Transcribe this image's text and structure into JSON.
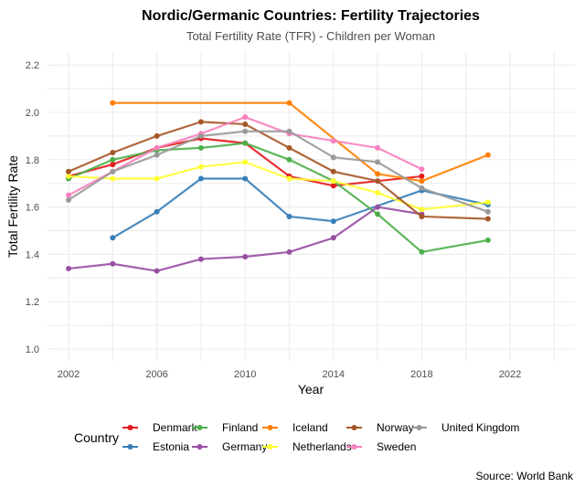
{
  "chart_data": {
    "type": "line",
    "title": "Nordic/Germanic Countries: Fertility Trajectories",
    "subtitle": "Total Fertility Rate (TFR) - Children per Woman",
    "xlabel": "Year",
    "ylabel": "Total Fertility Rate",
    "xlim": [
      2001,
      2025
    ],
    "ylim": [
      0.97,
      2.25
    ],
    "x_ticks": [
      "2002",
      "2006",
      "2010",
      "2014",
      "2018",
      "2022"
    ],
    "y_ticks": [
      "1.0",
      "1.2",
      "1.4",
      "1.6",
      "1.8",
      "2.0",
      "2.2"
    ],
    "grid": true,
    "legend_title": "Country",
    "legend_position": "bottom",
    "caption": "Source: World Bank",
    "series": [
      {
        "name": "Denmark",
        "color": "#e41a1c",
        "x": [
          2002,
          2004,
          2006,
          2008,
          2010,
          2012,
          2014,
          2018
        ],
        "y": [
          1.73,
          1.78,
          1.85,
          1.89,
          1.87,
          1.73,
          1.69,
          1.73
        ]
      },
      {
        "name": "Estonia",
        "color": "#377eb8",
        "x": [
          2004,
          2006,
          2008,
          2010,
          2012,
          2014,
          2018,
          2021
        ],
        "y": [
          1.47,
          1.58,
          1.72,
          1.72,
          1.56,
          1.54,
          1.67,
          1.61
        ]
      },
      {
        "name": "Finland",
        "color": "#4daf4a",
        "x": [
          2002,
          2004,
          2006,
          2008,
          2010,
          2012,
          2014,
          2016,
          2018,
          2021
        ],
        "y": [
          1.72,
          1.8,
          1.84,
          1.85,
          1.87,
          1.8,
          1.71,
          1.57,
          1.41,
          1.46
        ]
      },
      {
        "name": "Germany",
        "color": "#984ea3",
        "x": [
          2002,
          2004,
          2006,
          2008,
          2010,
          2012,
          2014,
          2016,
          2018
        ],
        "y": [
          1.34,
          1.36,
          1.33,
          1.38,
          1.39,
          1.41,
          1.47,
          1.6,
          1.57
        ]
      },
      {
        "name": "Iceland",
        "color": "#ff7f00",
        "x": [
          2004,
          2012,
          2016,
          2018,
          2021
        ],
        "y": [
          2.04,
          2.04,
          1.74,
          1.71,
          1.82
        ]
      },
      {
        "name": "Netherlands",
        "color": "#ffff33",
        "x": [
          2002,
          2004,
          2006,
          2008,
          2010,
          2012,
          2014,
          2016,
          2018,
          2021
        ],
        "y": [
          1.73,
          1.72,
          1.72,
          1.77,
          1.79,
          1.72,
          1.71,
          1.66,
          1.59,
          1.62
        ]
      },
      {
        "name": "Norway",
        "color": "#a65628",
        "x": [
          2002,
          2004,
          2006,
          2008,
          2010,
          2012,
          2014,
          2016,
          2018,
          2021
        ],
        "y": [
          1.75,
          1.83,
          1.9,
          1.96,
          1.95,
          1.85,
          1.75,
          1.71,
          1.56,
          1.55
        ]
      },
      {
        "name": "Sweden",
        "color": "#f781bf",
        "x": [
          2002,
          2004,
          2006,
          2008,
          2010,
          2012,
          2014,
          2016,
          2018
        ],
        "y": [
          1.65,
          1.75,
          1.85,
          1.91,
          1.98,
          1.91,
          1.88,
          1.85,
          1.76
        ]
      },
      {
        "name": "United Kingdom",
        "color": "#999999",
        "x": [
          2002,
          2004,
          2006,
          2008,
          2010,
          2012,
          2014,
          2016,
          2018,
          2021
        ],
        "y": [
          1.63,
          1.75,
          1.82,
          1.9,
          1.92,
          1.92,
          1.81,
          1.79,
          1.68,
          1.58
        ]
      }
    ]
  }
}
